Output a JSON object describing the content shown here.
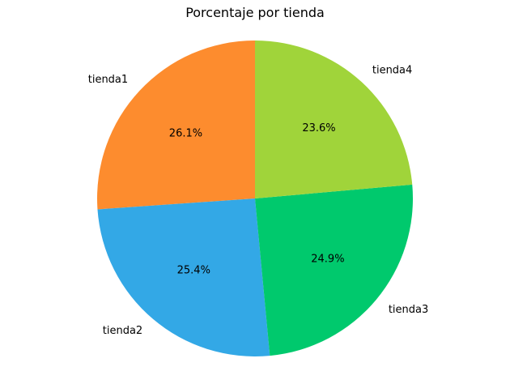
{
  "chart_data": {
    "type": "pie",
    "title": "Porcentaje por tienda",
    "categories": [
      "tienda1",
      "tienda2",
      "tienda3",
      "tienda4"
    ],
    "values": [
      26.1,
      25.4,
      24.9,
      23.6
    ],
    "value_labels": [
      "26.1%",
      "25.4%",
      "24.9%",
      "23.6%"
    ],
    "colors": [
      "#fd8c2e",
      "#33a8e6",
      "#00c96d",
      "#a0d43a"
    ],
    "start_angle_deg": 90,
    "direction": "counterclockwise",
    "legend": "none"
  }
}
